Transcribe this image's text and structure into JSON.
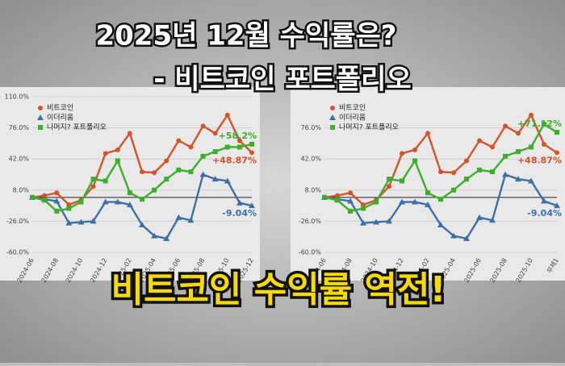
{
  "headline": [
    "2025년 12월 수익률은?",
    "- 비트코인 포트폴리오"
  ],
  "banner": "비트코인 수익률 역전!",
  "chart_data": [
    {
      "type": "line",
      "categories": [
        "2024-06",
        null,
        "2024-08",
        null,
        "2024-10",
        null,
        "2024-12",
        null,
        "2025-02",
        null,
        "2025-04",
        null,
        "2025-06",
        null,
        "2025-08",
        null,
        "2025-10",
        null,
        "2025-12"
      ],
      "ylim": [
        -60,
        110
      ],
      "yticks": [
        {
          "value": -60,
          "label": "-60.0%"
        },
        {
          "value": -26,
          "label": "-26.0%"
        },
        {
          "value": 8,
          "label": "8.0%"
        },
        {
          "value": 42,
          "label": "42.0%"
        },
        {
          "value": 76,
          "label": "76.0%"
        },
        {
          "value": 110,
          "label": "110.0%"
        }
      ],
      "grid": true,
      "series": [
        {
          "name": "비트코인",
          "color": "#d4532a",
          "marker": "circle",
          "end_label": "+48.87%",
          "values": [
            0,
            2,
            5,
            -8,
            -3,
            12,
            48,
            52,
            70,
            28,
            27,
            40,
            62,
            55,
            78,
            70,
            90,
            62,
            48.87
          ]
        },
        {
          "name": "이더리움",
          "color": "#3d6fa6",
          "marker": "triangle",
          "end_label": "-9.04%",
          "values": [
            0,
            -2,
            -4,
            -28,
            -27,
            -26,
            -5,
            -5,
            -8,
            -30,
            -42,
            -45,
            -22,
            -25,
            25,
            20,
            18,
            -6,
            -9.04
          ]
        },
        {
          "name": "나머지? 포트폴리오",
          "color": "#3cae2a",
          "marker": "square",
          "end_label": "+58.2%",
          "values": [
            0,
            -3,
            -15,
            -12,
            -5,
            20,
            18,
            40,
            5,
            -2,
            8,
            20,
            30,
            28,
            45,
            50,
            55,
            55,
            58.2
          ]
        }
      ]
    },
    {
      "type": "line",
      "categories": [
        "2024-06",
        null,
        "2024-08",
        null,
        "2024-10",
        null,
        "2024-12",
        null,
        "2025-02",
        null,
        "2025-04",
        null,
        "2025-06",
        null,
        "2025-08",
        null,
        "2025-10",
        null,
        "무제1"
      ],
      "ylim": [
        -60,
        110
      ],
      "yticks": [
        {
          "value": -60,
          "label": "-60.0%"
        },
        {
          "value": -26,
          "label": "-26.0%"
        },
        {
          "value": 8,
          "label": "8.0%"
        },
        {
          "value": 42,
          "label": "42.0%"
        },
        {
          "value": 76,
          "label": "76.0%"
        }
      ],
      "grid": true,
      "series": [
        {
          "name": "비트코인",
          "color": "#d4532a",
          "marker": "circle",
          "end_label": "+48.87%",
          "values": [
            0,
            2,
            5,
            -8,
            -3,
            12,
            48,
            52,
            70,
            28,
            27,
            40,
            62,
            55,
            78,
            70,
            90,
            58,
            48.87
          ]
        },
        {
          "name": "이더리움",
          "color": "#3d6fa6",
          "marker": "triangle",
          "end_label": "-9.04%",
          "values": [
            0,
            -2,
            -4,
            -28,
            -27,
            -26,
            -5,
            -5,
            -8,
            -30,
            -42,
            -45,
            -22,
            -25,
            25,
            20,
            18,
            -4,
            -9.04
          ]
        },
        {
          "name": "나머지? 포트폴리오",
          "color": "#3cae2a",
          "marker": "square",
          "end_label": "+71.12%",
          "values": [
            0,
            -3,
            -15,
            -12,
            -5,
            20,
            18,
            40,
            5,
            -2,
            8,
            20,
            30,
            28,
            45,
            50,
            55,
            80,
            71.12
          ]
        }
      ]
    }
  ]
}
